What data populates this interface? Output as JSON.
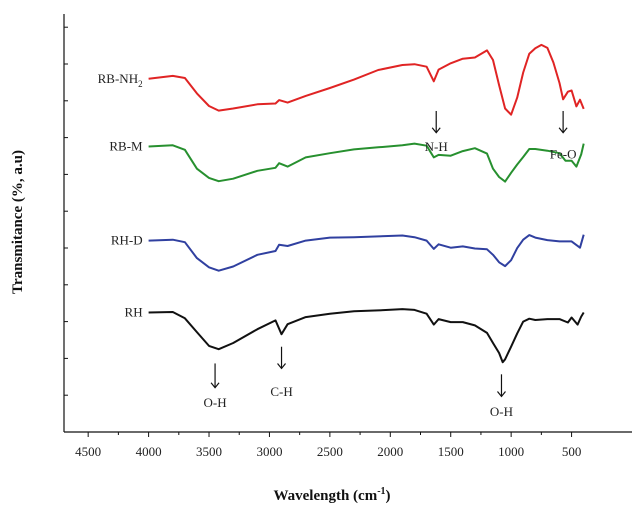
{
  "chart_data": {
    "type": "line",
    "xlabel": "Wavelength (cm",
    "xlabel_sup": "-1",
    "xlabel_close": ")",
    "ylabel": "Transmitance (%, a.u)",
    "xlim": [
      4700,
      0
    ],
    "ylim": [
      0,
      100
    ],
    "x_ticks": [
      4500,
      4000,
      3500,
      3000,
      2500,
      2000,
      1500,
      1000,
      500
    ],
    "grid": false,
    "series": [
      {
        "name": "RB-NH",
        "name_sub": "2",
        "color": "#e02424",
        "points": [
          [
            4000,
            84.5
          ],
          [
            3800,
            85.2
          ],
          [
            3700,
            84.7
          ],
          [
            3600,
            81
          ],
          [
            3500,
            78
          ],
          [
            3420,
            76.9
          ],
          [
            3300,
            77.4
          ],
          [
            3100,
            78.4
          ],
          [
            2950,
            78.6
          ],
          [
            2920,
            79.4
          ],
          [
            2850,
            78.8
          ],
          [
            2700,
            80.4
          ],
          [
            2500,
            82.3
          ],
          [
            2300,
            84.3
          ],
          [
            2100,
            86.6
          ],
          [
            1900,
            87.8
          ],
          [
            1800,
            88
          ],
          [
            1700,
            87.4
          ],
          [
            1640,
            83.9
          ],
          [
            1600,
            86.7
          ],
          [
            1500,
            88.2
          ],
          [
            1400,
            89.3
          ],
          [
            1300,
            89.6
          ],
          [
            1200,
            91.3
          ],
          [
            1150,
            89
          ],
          [
            1100,
            83
          ],
          [
            1050,
            77.4
          ],
          [
            1000,
            75.9
          ],
          [
            950,
            80
          ],
          [
            900,
            86
          ],
          [
            850,
            90.5
          ],
          [
            800,
            91.8
          ],
          [
            750,
            92.6
          ],
          [
            700,
            91.9
          ],
          [
            650,
            88.4
          ],
          [
            600,
            83.5
          ],
          [
            570,
            79.6
          ],
          [
            530,
            81.4
          ],
          [
            500,
            81.7
          ],
          [
            460,
            77.9
          ],
          [
            430,
            79.5
          ],
          [
            400,
            77.3
          ]
        ]
      },
      {
        "name": "RB-M",
        "name_sub": "",
        "color": "#27902f",
        "points": [
          [
            4000,
            68.3
          ],
          [
            3800,
            68.6
          ],
          [
            3700,
            67.5
          ],
          [
            3600,
            63
          ],
          [
            3500,
            60.8
          ],
          [
            3420,
            60
          ],
          [
            3300,
            60.6
          ],
          [
            3100,
            62.5
          ],
          [
            2950,
            63.2
          ],
          [
            2920,
            64.3
          ],
          [
            2850,
            63.5
          ],
          [
            2700,
            65.7
          ],
          [
            2500,
            66.7
          ],
          [
            2300,
            67.6
          ],
          [
            2100,
            68.1
          ],
          [
            1900,
            68.6
          ],
          [
            1800,
            69
          ],
          [
            1700,
            68.5
          ],
          [
            1640,
            65.7
          ],
          [
            1600,
            66.3
          ],
          [
            1500,
            66.1
          ],
          [
            1400,
            67.2
          ],
          [
            1300,
            67.9
          ],
          [
            1200,
            66.6
          ],
          [
            1150,
            63
          ],
          [
            1100,
            61
          ],
          [
            1050,
            59.9
          ],
          [
            1000,
            62
          ],
          [
            950,
            64
          ],
          [
            900,
            65.8
          ],
          [
            850,
            67.7
          ],
          [
            800,
            67.7
          ],
          [
            700,
            67.3
          ],
          [
            600,
            66.7
          ],
          [
            550,
            64.9
          ],
          [
            500,
            64.9
          ],
          [
            460,
            63.5
          ],
          [
            420,
            66.4
          ],
          [
            400,
            69
          ]
        ]
      },
      {
        "name": "RH-D",
        "name_sub": "",
        "color": "#3040a0",
        "points": [
          [
            4000,
            45.8
          ],
          [
            3800,
            46
          ],
          [
            3700,
            45.4
          ],
          [
            3600,
            41.6
          ],
          [
            3500,
            39.4
          ],
          [
            3420,
            38.6
          ],
          [
            3300,
            39.6
          ],
          [
            3100,
            42.4
          ],
          [
            2950,
            43.3
          ],
          [
            2920,
            44.8
          ],
          [
            2850,
            44.5
          ],
          [
            2700,
            45.8
          ],
          [
            2500,
            46.5
          ],
          [
            2300,
            46.6
          ],
          [
            2100,
            46.8
          ],
          [
            1900,
            47
          ],
          [
            1800,
            46.6
          ],
          [
            1700,
            45.8
          ],
          [
            1640,
            43.8
          ],
          [
            1600,
            44.9
          ],
          [
            1500,
            44.1
          ],
          [
            1400,
            44.4
          ],
          [
            1300,
            43.9
          ],
          [
            1200,
            43.7
          ],
          [
            1150,
            42.4
          ],
          [
            1100,
            40.6
          ],
          [
            1050,
            39.7
          ],
          [
            1000,
            41.1
          ],
          [
            950,
            44
          ],
          [
            900,
            46
          ],
          [
            850,
            47.1
          ],
          [
            800,
            46.5
          ],
          [
            700,
            45.9
          ],
          [
            600,
            45.6
          ],
          [
            500,
            45.6
          ],
          [
            430,
            44.1
          ],
          [
            400,
            47.2
          ]
        ]
      },
      {
        "name": "RH",
        "name_sub": "",
        "color": "#111111",
        "points": [
          [
            4000,
            28.6
          ],
          [
            3800,
            28.7
          ],
          [
            3700,
            27.2
          ],
          [
            3600,
            23.9
          ],
          [
            3500,
            20.6
          ],
          [
            3420,
            19.8
          ],
          [
            3300,
            21.3
          ],
          [
            3100,
            24.6
          ],
          [
            2950,
            26.7
          ],
          [
            2900,
            23.4
          ],
          [
            2850,
            25.8
          ],
          [
            2700,
            27.5
          ],
          [
            2500,
            28.3
          ],
          [
            2300,
            28.9
          ],
          [
            2100,
            29.1
          ],
          [
            1900,
            29.4
          ],
          [
            1800,
            29.2
          ],
          [
            1700,
            28.3
          ],
          [
            1640,
            25.7
          ],
          [
            1600,
            27
          ],
          [
            1500,
            26.3
          ],
          [
            1400,
            26.3
          ],
          [
            1300,
            25.5
          ],
          [
            1200,
            23.7
          ],
          [
            1150,
            21.3
          ],
          [
            1100,
            18.9
          ],
          [
            1070,
            16.7
          ],
          [
            1050,
            17.4
          ],
          [
            1000,
            20.4
          ],
          [
            950,
            23.6
          ],
          [
            900,
            26.4
          ],
          [
            850,
            27.1
          ],
          [
            800,
            26.8
          ],
          [
            700,
            27
          ],
          [
            600,
            27
          ],
          [
            530,
            26.2
          ],
          [
            500,
            27.4
          ],
          [
            450,
            25.7
          ],
          [
            420,
            27.6
          ],
          [
            400,
            28.6
          ]
        ]
      }
    ],
    "annotations": [
      {
        "label": "N-H",
        "x": 1620,
        "y_arrow_top": 76.8,
        "y_arrow_bottom": 71.6,
        "y_text": 67.2
      },
      {
        "label": "Fe-O",
        "x": 570,
        "y_arrow_top": 76.8,
        "y_arrow_bottom": 71.6,
        "y_text": 65.4
      },
      {
        "label": "O-H",
        "x": 3450,
        "y_arrow_top": 16.4,
        "y_arrow_bottom": 10.6,
        "y_text": 6.0
      },
      {
        "label": "C-H",
        "x": 2900,
        "y_arrow_top": 20.4,
        "y_arrow_bottom": 15.2,
        "y_text": 8.6
      },
      {
        "label": "O-H",
        "x": 1080,
        "y_arrow_top": 13.8,
        "y_arrow_bottom": 8.5,
        "y_text": 3.8
      }
    ]
  }
}
